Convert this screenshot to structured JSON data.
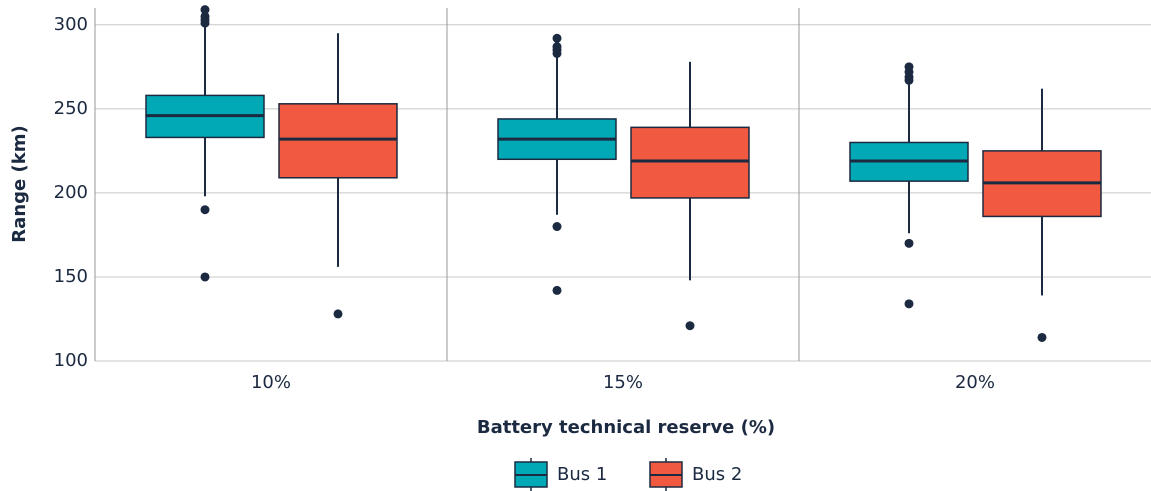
{
  "chart_data": {
    "type": "box",
    "x_label": "Battery technical reserve (%)",
    "y_label": "Range (km)",
    "categories": [
      "10%",
      "15%",
      "20%"
    ],
    "ylim": [
      100,
      310
    ],
    "yticks": [
      100,
      150,
      200,
      250,
      300
    ],
    "grid": true,
    "legend": "bottom",
    "series": [
      {
        "name": "Bus 1",
        "color": "#00a9b5",
        "values": [
          {
            "low": 198,
            "q1": 233,
            "median": 246,
            "q3": 258,
            "high": 299,
            "outliers": [
              309,
              305,
              303,
              301,
              190,
              150
            ]
          },
          {
            "low": 187,
            "q1": 220,
            "median": 232,
            "q3": 244,
            "high": 282,
            "outliers": [
              292,
              287,
              285,
              283,
              180,
              142
            ]
          },
          {
            "low": 176,
            "q1": 207,
            "median": 219,
            "q3": 230,
            "high": 266,
            "outliers": [
              275,
              272,
              269,
              267,
              170,
              134
            ]
          }
        ]
      },
      {
        "name": "Bus 2",
        "color": "#f15a40",
        "values": [
          {
            "low": 156,
            "q1": 209,
            "median": 232,
            "q3": 253,
            "high": 295,
            "outliers": [
              128
            ]
          },
          {
            "low": 148,
            "q1": 197,
            "median": 219,
            "q3": 239,
            "high": 278,
            "outliers": [
              121
            ]
          },
          {
            "low": 139,
            "q1": 186,
            "median": 206,
            "q3": 225,
            "high": 262,
            "outliers": [
              114
            ]
          }
        ]
      }
    ]
  }
}
